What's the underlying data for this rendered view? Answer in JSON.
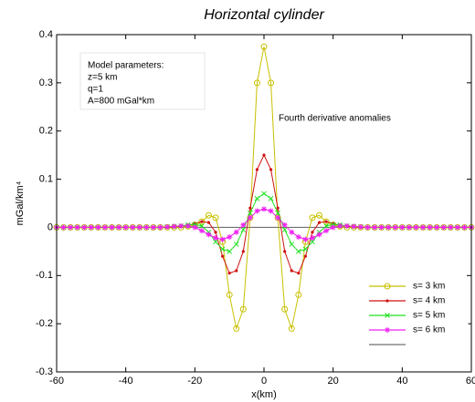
{
  "chart_data": {
    "type": "line",
    "title": "Horizontal cylinder",
    "xlabel": "x(km)",
    "ylabel": "mGal/km⁴",
    "model_box": [
      "Model parameters:",
      "z=5 km",
      "q=1",
      "A=800 mGal*km"
    ],
    "annotation": "Fourth derivative anomalies",
    "x": [
      -60,
      -58,
      -56,
      -54,
      -52,
      -50,
      -48,
      -46,
      -44,
      -42,
      -40,
      -38,
      -36,
      -34,
      -32,
      -30,
      -28,
      -26,
      -24,
      -22,
      -20,
      -18,
      -16,
      -14,
      -12,
      -10,
      -8,
      -6,
      -4,
      -2,
      0,
      2,
      4,
      6,
      8,
      10,
      12,
      14,
      16,
      18,
      20,
      22,
      24,
      26,
      28,
      30,
      32,
      34,
      36,
      38,
      40,
      42,
      44,
      46,
      48,
      50,
      52,
      54,
      56,
      58,
      60
    ],
    "series": [
      {
        "name": "s= 3 km",
        "color": "#c8c000",
        "marker": "circle",
        "values": [
          0,
          0,
          0,
          0,
          0,
          0,
          0,
          0,
          0,
          0,
          0,
          0,
          0,
          0,
          0,
          0,
          0,
          0,
          0,
          0.002,
          0.005,
          0.012,
          0.025,
          0.02,
          -0.03,
          -0.14,
          -0.21,
          -0.17,
          0.02,
          0.3,
          0.375,
          0.3,
          0.02,
          -0.17,
          -0.21,
          -0.14,
          -0.03,
          0.02,
          0.025,
          0.012,
          0.005,
          0.002,
          0,
          0,
          0,
          0,
          0,
          0,
          0,
          0,
          0,
          0,
          0,
          0,
          0,
          0,
          0,
          0,
          0,
          0,
          0
        ]
      },
      {
        "name": "s= 4 km",
        "color": "#d01010",
        "marker": "dot",
        "values": [
          0,
          0,
          0,
          0,
          0,
          0,
          0,
          0,
          0,
          0,
          0,
          0,
          0,
          0,
          0,
          0,
          0,
          0.001,
          0.002,
          0.004,
          0.008,
          0.012,
          0.01,
          -0.01,
          -0.06,
          -0.095,
          -0.09,
          -0.05,
          0.04,
          0.12,
          0.15,
          0.12,
          0.04,
          -0.05,
          -0.09,
          -0.095,
          -0.06,
          -0.01,
          0.01,
          0.012,
          0.008,
          0.004,
          0.002,
          0.001,
          0,
          0,
          0,
          0,
          0,
          0,
          0,
          0,
          0,
          0,
          0,
          0,
          0,
          0,
          0,
          0,
          0
        ]
      },
      {
        "name": "s= 5 km",
        "color": "#20e020",
        "marker": "x",
        "values": [
          0,
          0,
          0,
          0,
          0,
          0,
          0,
          0,
          0,
          0,
          0,
          0,
          0,
          0,
          0,
          0,
          0.001,
          0.002,
          0.003,
          0.005,
          0.006,
          0.003,
          -0.01,
          -0.03,
          -0.045,
          -0.05,
          -0.035,
          -0.005,
          0.03,
          0.06,
          0.07,
          0.06,
          0.03,
          -0.005,
          -0.035,
          -0.05,
          -0.045,
          -0.03,
          -0.01,
          0.003,
          0.006,
          0.005,
          0.003,
          0.002,
          0.001,
          0,
          0,
          0,
          0,
          0,
          0,
          0,
          0,
          0,
          0,
          0,
          0,
          0,
          0,
          0,
          0
        ]
      },
      {
        "name": "s= 6 km",
        "color": "#f020f0",
        "marker": "star",
        "values": [
          0,
          0,
          0,
          0,
          0,
          0,
          0,
          0,
          0,
          0,
          0,
          0,
          0,
          0,
          0,
          0,
          0.001,
          0.002,
          0.003,
          0.003,
          0,
          -0.007,
          -0.015,
          -0.022,
          -0.025,
          -0.02,
          -0.01,
          0.005,
          0.02,
          0.034,
          0.038,
          0.034,
          0.02,
          0.005,
          -0.01,
          -0.02,
          -0.025,
          -0.022,
          -0.015,
          -0.007,
          0,
          0.003,
          0.003,
          0.002,
          0.001,
          0,
          0,
          0,
          0,
          0,
          0,
          0,
          0,
          0,
          0,
          0,
          0,
          0,
          0,
          0,
          0
        ]
      },
      {
        "color": "#707070",
        "marker": "none",
        "values": [
          0,
          0,
          0,
          0,
          0,
          0,
          0,
          0,
          0,
          0,
          0,
          0,
          0,
          0,
          0,
          0,
          0,
          0,
          0,
          0,
          0,
          0,
          0,
          0,
          0,
          0,
          0,
          0,
          0,
          0,
          0,
          0,
          0,
          0,
          0,
          0,
          0,
          0,
          0,
          0,
          0,
          0,
          0,
          0,
          0,
          0,
          0,
          0,
          0,
          0,
          0,
          0,
          0,
          0,
          0,
          0,
          0,
          0,
          0,
          0,
          0
        ]
      }
    ],
    "xlim": [
      -60,
      60
    ],
    "xticks": [
      -60,
      -40,
      -20,
      0,
      20,
      40,
      60
    ],
    "ylim": [
      -0.3,
      0.4
    ],
    "yticks": [
      -0.3,
      -0.2,
      -0.1,
      0,
      0.1,
      0.2,
      0.3,
      0.4
    ],
    "grid": false,
    "legend": "lower right"
  }
}
